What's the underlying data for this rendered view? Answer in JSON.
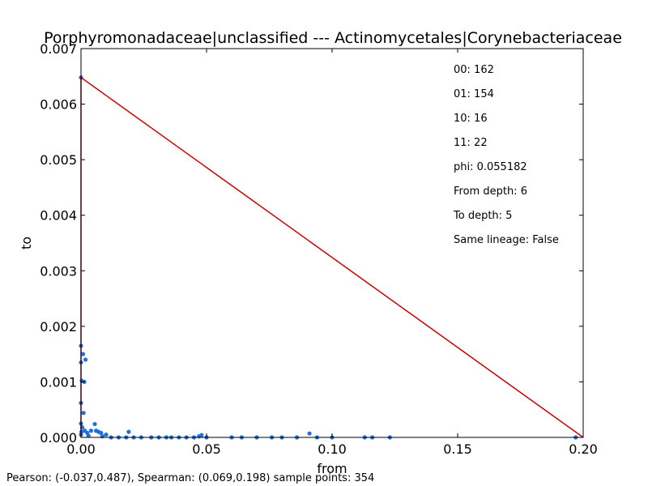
{
  "chart_data": {
    "type": "scatter",
    "title": "Porphyromonadaceae|unclassified --- Actinomycetales|Corynebacteriaceae",
    "xlabel": "from",
    "ylabel": "to",
    "xlim": [
      0.0,
      0.2
    ],
    "ylim": [
      0.0,
      0.007
    ],
    "x_ticks": [
      0.0,
      0.05,
      0.1,
      0.15,
      0.2
    ],
    "x_tick_labels": [
      "0.00",
      "0.05",
      "0.10",
      "0.15",
      "0.20"
    ],
    "y_ticks": [
      0.0,
      0.001,
      0.002,
      0.003,
      0.004,
      0.005,
      0.006,
      0.007
    ],
    "y_tick_labels": [
      "0.000",
      "0.001",
      "0.002",
      "0.003",
      "0.004",
      "0.005",
      "0.006",
      "0.007"
    ],
    "grid": false,
    "point_color": "#1f6fe0",
    "line_color": "#cc0000",
    "points": [
      {
        "x": 0.0,
        "y": 0.00648
      },
      {
        "x": 0.0,
        "y": 0.00165
      },
      {
        "x": 0.0008,
        "y": 0.0015
      },
      {
        "x": 0.0018,
        "y": 0.0014
      },
      {
        "x": 0.0,
        "y": 0.00135
      },
      {
        "x": 0.0003,
        "y": 0.00102
      },
      {
        "x": 0.0013,
        "y": 0.001
      },
      {
        "x": 0.0,
        "y": 0.00062
      },
      {
        "x": 0.001,
        "y": 0.00044
      },
      {
        "x": 0.0,
        "y": 0.00025
      },
      {
        "x": 0.0005,
        "y": 0.00018
      },
      {
        "x": 0.0015,
        "y": 0.00012
      },
      {
        "x": 0.0025,
        "y": 8e-05
      },
      {
        "x": 0.004,
        "y": 0.00012
      },
      {
        "x": 0.0055,
        "y": 0.00024
      },
      {
        "x": 0.006,
        "y": 0.00012
      },
      {
        "x": 0.007,
        "y": 0.0001
      },
      {
        "x": 0.008,
        "y": 8e-05
      },
      {
        "x": 0.0085,
        "y": 2e-05
      },
      {
        "x": 0.01,
        "y": 5e-05
      },
      {
        "x": 0.003,
        "y": 3e-05
      },
      {
        "x": 0.019,
        "y": 0.0001
      },
      {
        "x": 0.0,
        "y": 5e-05
      },
      {
        "x": 0.0002,
        "y": 0.0001
      },
      {
        "x": 0.012,
        "y": 0.0
      },
      {
        "x": 0.015,
        "y": 0.0
      },
      {
        "x": 0.018,
        "y": 0.0
      },
      {
        "x": 0.021,
        "y": 0.0
      },
      {
        "x": 0.024,
        "y": 0.0
      },
      {
        "x": 0.028,
        "y": 0.0
      },
      {
        "x": 0.031,
        "y": 0.0
      },
      {
        "x": 0.034,
        "y": 0.0
      },
      {
        "x": 0.036,
        "y": 0.0
      },
      {
        "x": 0.039,
        "y": 0.0
      },
      {
        "x": 0.042,
        "y": 0.0
      },
      {
        "x": 0.045,
        "y": 0.0
      },
      {
        "x": 0.047,
        "y": 2e-05
      },
      {
        "x": 0.048,
        "y": 4e-05
      },
      {
        "x": 0.05,
        "y": 0.0
      },
      {
        "x": 0.06,
        "y": 0.0
      },
      {
        "x": 0.064,
        "y": 0.0
      },
      {
        "x": 0.07,
        "y": 0.0
      },
      {
        "x": 0.076,
        "y": 0.0
      },
      {
        "x": 0.08,
        "y": 0.0
      },
      {
        "x": 0.086,
        "y": 0.0
      },
      {
        "x": 0.091,
        "y": 7e-05
      },
      {
        "x": 0.094,
        "y": 0.0
      },
      {
        "x": 0.1,
        "y": 0.0
      },
      {
        "x": 0.113,
        "y": 0.0
      },
      {
        "x": 0.116,
        "y": 0.0
      },
      {
        "x": 0.123,
        "y": 0.0
      },
      {
        "x": 0.197,
        "y": 0.0
      }
    ],
    "regression_line": [
      {
        "x": 0.0,
        "y": 0.0
      },
      {
        "x": 0.0,
        "y": 0.00648
      },
      {
        "x": 0.2,
        "y": 0.0
      }
    ],
    "annotations": [
      "00: 162",
      "01: 154",
      "10: 16",
      "11: 22",
      "phi: 0.055182",
      "From depth: 6",
      "To depth: 5",
      "Same lineage: False"
    ]
  },
  "footer": "Pearson: (-0.037,0.487), Spearman: (0.069,0.198) sample points: 354"
}
